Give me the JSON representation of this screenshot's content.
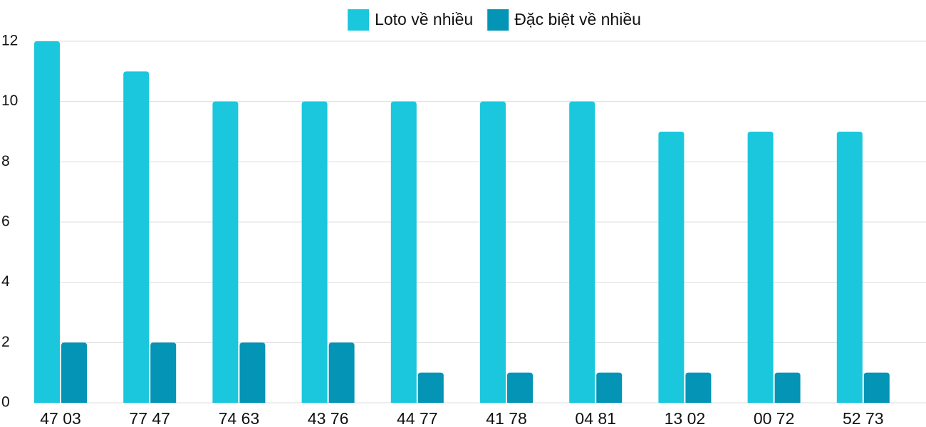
{
  "chart_data": {
    "type": "bar",
    "categories": [
      "47 03",
      "77 47",
      "74 63",
      "43 76",
      "44 77",
      "41 78",
      "04 81",
      "13 02",
      "00 72",
      "52 73"
    ],
    "series": [
      {
        "name": "Loto về nhiều",
        "color": "#1bc7dc",
        "values": [
          12,
          11,
          10,
          10,
          10,
          10,
          10,
          9,
          9,
          9
        ]
      },
      {
        "name": "Đặc biệt về nhiều",
        "color": "#0494b6",
        "values": [
          2,
          2,
          2,
          2,
          1,
          1,
          1,
          1,
          1,
          1
        ]
      }
    ],
    "ylim": [
      0,
      12
    ],
    "yticks": [
      0,
      2,
      4,
      6,
      8,
      10,
      12
    ],
    "grid": true,
    "legend": "top"
  }
}
